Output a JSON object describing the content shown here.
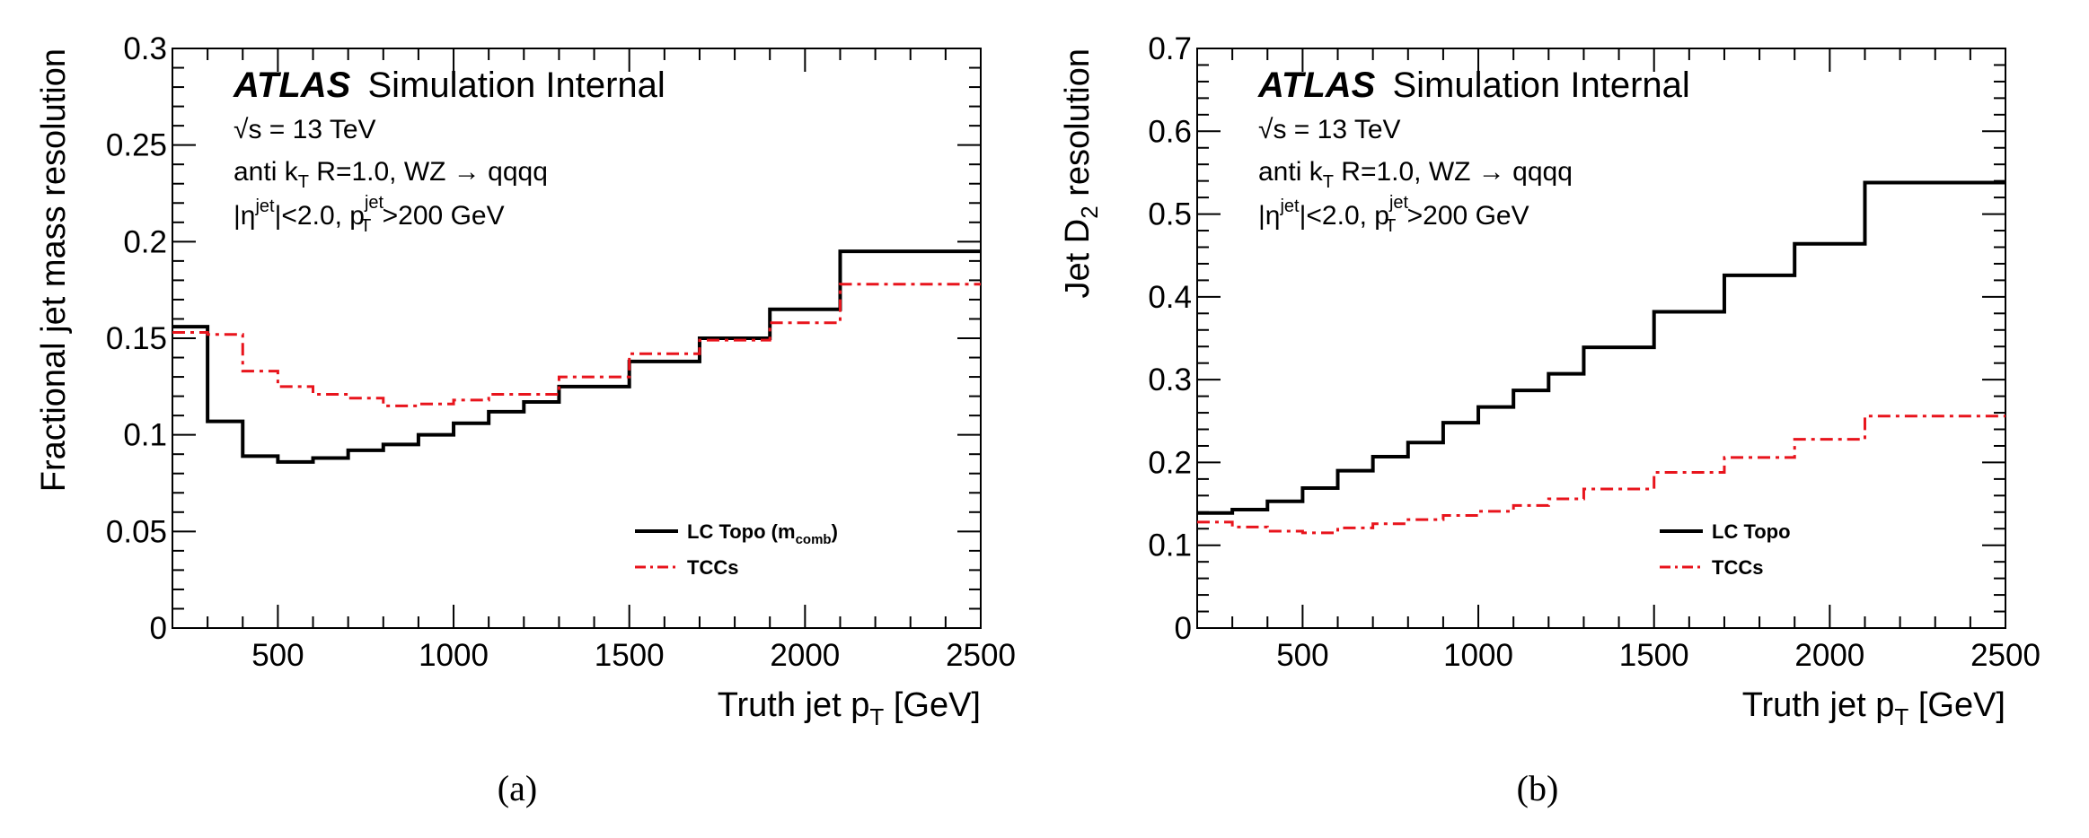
{
  "chart_data": [
    {
      "type": "line",
      "panel_caption": "(a)",
      "experiment": "ATLAS",
      "experiment_tag": "Simulation Internal",
      "annotations": [
        "√s = 13 TeV",
        "anti k_T R=1.0, WZ → qqqq",
        "|η^jet|<2.0, p_T^jet >200 GeV"
      ],
      "xlabel": "Truth jet p_T [GeV]",
      "ylabel": "Fractional jet mass resolution",
      "xlim": [
        200,
        2500
      ],
      "ylim": [
        0,
        0.3
      ],
      "x_ticks": [
        500,
        1000,
        1500,
        2000,
        2500
      ],
      "y_ticks": [
        0,
        0.05,
        0.1,
        0.15,
        0.2,
        0.25,
        0.3
      ],
      "y_tick_labels": [
        "0",
        "0.05",
        "0.1",
        "0.15",
        "0.2",
        "0.25",
        "0.3"
      ],
      "bin_edges": [
        200,
        300,
        400,
        500,
        600,
        700,
        800,
        900,
        1000,
        1100,
        1200,
        1300,
        1500,
        1700,
        1900,
        2100,
        2500
      ],
      "legend_position": "bottom-right",
      "series": [
        {
          "name": "LC Topo (m_comb)",
          "style": "solid",
          "color": "#000000",
          "values": [
            0.156,
            0.107,
            0.089,
            0.086,
            0.088,
            0.092,
            0.095,
            0.1,
            0.106,
            0.112,
            0.117,
            0.125,
            0.138,
            0.15,
            0.165,
            0.195
          ]
        },
        {
          "name": "TCCs",
          "style": "dashdot",
          "color": "#e8141c",
          "values": [
            0.153,
            0.152,
            0.133,
            0.125,
            0.121,
            0.119,
            0.115,
            0.116,
            0.118,
            0.121,
            0.121,
            0.13,
            0.142,
            0.149,
            0.158,
            0.178
          ]
        }
      ]
    },
    {
      "type": "line",
      "panel_caption": "(b)",
      "experiment": "ATLAS",
      "experiment_tag": "Simulation Internal",
      "annotations": [
        "√s = 13 TeV",
        "anti k_T R=1.0, WZ → qqqq",
        "|η^jet|<2.0, p_T^jet >200 GeV"
      ],
      "xlabel": "Truth jet p_T [GeV]",
      "ylabel": "Jet D_2 resolution",
      "xlim": [
        200,
        2500
      ],
      "ylim": [
        0,
        0.7
      ],
      "x_ticks": [
        500,
        1000,
        1500,
        2000,
        2500
      ],
      "y_ticks": [
        0,
        0.1,
        0.2,
        0.3,
        0.4,
        0.5,
        0.6,
        0.7
      ],
      "y_tick_labels": [
        "0",
        "0.1",
        "0.2",
        "0.3",
        "0.4",
        "0.5",
        "0.6",
        "0.7"
      ],
      "bin_edges": [
        200,
        300,
        400,
        500,
        600,
        700,
        800,
        900,
        1000,
        1100,
        1200,
        1300,
        1500,
        1700,
        1900,
        2100,
        2500
      ],
      "legend_position": "bottom-right",
      "series": [
        {
          "name": "LC Topo",
          "style": "solid",
          "color": "#000000",
          "values": [
            0.139,
            0.143,
            0.153,
            0.169,
            0.19,
            0.207,
            0.224,
            0.248,
            0.267,
            0.287,
            0.307,
            0.339,
            0.382,
            0.426,
            0.464,
            0.538
          ]
        },
        {
          "name": "TCCs",
          "style": "dashdot",
          "color": "#e8141c",
          "values": [
            0.128,
            0.122,
            0.117,
            0.115,
            0.121,
            0.126,
            0.131,
            0.136,
            0.141,
            0.148,
            0.156,
            0.168,
            0.188,
            0.206,
            0.228,
            0.256
          ]
        }
      ]
    }
  ]
}
